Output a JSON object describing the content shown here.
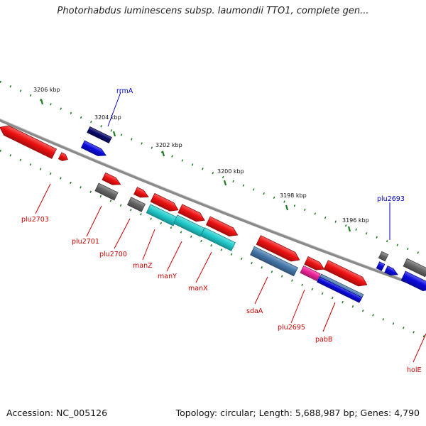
{
  "header": {
    "title": "Photorhabdus luminescens subsp. laumondii TTO1, complete gen..."
  },
  "footer": {
    "accession": "Accession: NC_005126",
    "summary": "Topology: circular; Length: 5,688,987 bp; Genes: 4,790"
  },
  "colors": {
    "backbone": "#8a8a8a",
    "tick": "#1e7a1e",
    "label_red": "#cc0000",
    "label_blue": "#0000cc",
    "feature_red": "#ee1111",
    "feature_grey": "#666666",
    "feature_blue": "#0a0add",
    "feature_navy": "#0a0a6a",
    "feature_cyan": "#22cccc",
    "feature_steel": "#4477aa",
    "feature_pink": "#ee2299"
  },
  "scale_labels": [
    "3206 kbp",
    "3204 kbp",
    "3202 kbp",
    "3200 kbp",
    "3198 kbp",
    "3196 kbp"
  ],
  "gene_labels": [
    {
      "text": "rrmA",
      "color": "blue"
    },
    {
      "text": "plu2703",
      "color": "red"
    },
    {
      "text": "plu2701",
      "color": "red"
    },
    {
      "text": "plu2700",
      "color": "red"
    },
    {
      "text": "manZ",
      "color": "red"
    },
    {
      "text": "manY",
      "color": "red"
    },
    {
      "text": "manX",
      "color": "red"
    },
    {
      "text": "sdaA",
      "color": "red"
    },
    {
      "text": "plu2695",
      "color": "red"
    },
    {
      "text": "pabB",
      "color": "red"
    },
    {
      "text": "plu2693",
      "color": "blue"
    },
    {
      "text": "holE",
      "color": "red"
    }
  ]
}
